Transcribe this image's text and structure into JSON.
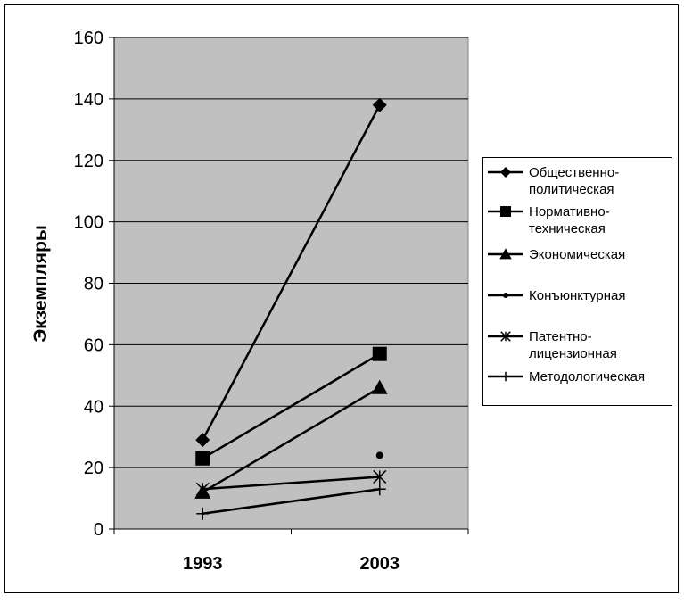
{
  "chart_data": {
    "type": "line",
    "title": "",
    "xlabel": "",
    "ylabel": "Экземпляры",
    "categories": [
      "1993",
      "2003"
    ],
    "ylim": [
      0,
      160
    ],
    "yticks": [
      0,
      20,
      40,
      60,
      80,
      100,
      120,
      140,
      160
    ],
    "grid": true,
    "plot_background": "#c0c0c0",
    "legend_position": "right",
    "series": [
      {
        "name": "Общественно-политическая",
        "name_lines": [
          "Общественно-",
          "политическая"
        ],
        "marker": "diamond",
        "values": [
          29,
          138
        ]
      },
      {
        "name": "Нормативно-техническая",
        "name_lines": [
          "Нормативно-",
          "техническая"
        ],
        "marker": "square",
        "values": [
          23,
          57
        ]
      },
      {
        "name": "Экономическая",
        "name_lines": [
          "Экономическая"
        ],
        "marker": "triangle",
        "values": [
          12,
          46
        ]
      },
      {
        "name": "Конъюнктурная",
        "name_lines": [
          "Конъюнктурная"
        ],
        "marker": "circle",
        "values": [
          null,
          24
        ]
      },
      {
        "name": "Патентно-лицензионная",
        "name_lines": [
          "Патентно-",
          "лицензионная"
        ],
        "marker": "star",
        "values": [
          13,
          17
        ]
      },
      {
        "name": "Методологическая",
        "name_lines": [
          "Методологическая"
        ],
        "marker": "plus",
        "values": [
          5,
          13
        ]
      }
    ]
  }
}
